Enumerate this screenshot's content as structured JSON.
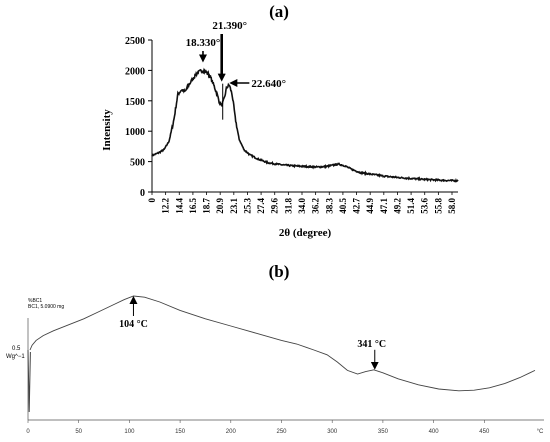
{
  "chart_data": [
    {
      "panel_label": "(a)",
      "type": "line",
      "xlabel": "2θ (degree)",
      "ylabel": "Intensity",
      "ylim": [
        0,
        2500
      ],
      "yticks": [
        "0",
        "500",
        "1000",
        "1500",
        "2000",
        "2500"
      ],
      "xticks": [
        "0",
        "12.2",
        "14.4",
        "16.5",
        "18.7",
        "20.9",
        "23.1",
        "25.3",
        "27.4",
        "29.6",
        "31.8",
        "34.0",
        "36.2",
        "38.3",
        "40.5",
        "42.7",
        "44.9",
        "47.1",
        "49.2",
        "51.4",
        "53.6",
        "55.8",
        "58.0"
      ],
      "series": [
        {
          "x": [
            10.0,
            11.0,
            12.0,
            12.8,
            13.6,
            14.2,
            14.8,
            15.4,
            16.0,
            16.6,
            17.2,
            17.8,
            18.3,
            18.9,
            19.5,
            20.0,
            20.6,
            21.0,
            21.39,
            21.8,
            22.2,
            22.64,
            23.1,
            23.6,
            24.2,
            25.0,
            26.0,
            27.4,
            29.0,
            31.0,
            33.0,
            35.0,
            37.0,
            38.5,
            39.5,
            40.5,
            41.5,
            42.7,
            44.0,
            46.0,
            48.0,
            50.0,
            52.0,
            54.0,
            56.0,
            58.0,
            60.0
          ],
          "y": [
            600,
            640,
            700,
            840,
            1200,
            1600,
            1680,
            1650,
            1760,
            1850,
            1940,
            1980,
            2000,
            1970,
            1900,
            1780,
            1620,
            1480,
            1420,
            1530,
            1720,
            1760,
            1600,
            1220,
            880,
            700,
            610,
            540,
            480,
            450,
            430,
            420,
            410,
            420,
            440,
            460,
            430,
            370,
            320,
            290,
            260,
            240,
            225,
            210,
            200,
            190,
            185
          ]
        }
      ],
      "annotations": [
        {
          "label": "18.330°",
          "x": 18.33,
          "arrow": "down"
        },
        {
          "label": "21.390°",
          "x": 21.39,
          "arrow": "down"
        },
        {
          "label": "22.640°",
          "x": 22.64,
          "arrow": "left"
        }
      ]
    },
    {
      "panel_label": "(b)",
      "type": "line",
      "header_lines": [
        "%BC1",
        "BC1, 5.0900 mg"
      ],
      "ylabel": "Wg^−1",
      "ytick": "0.5",
      "xlim": [
        0,
        500
      ],
      "xticks": [
        "0",
        "50",
        "100",
        "150",
        "200",
        "250",
        "300",
        "350",
        "400",
        "450",
        "°C"
      ],
      "series": [
        {
          "x": [
            2,
            4,
            8,
            15,
            25,
            40,
            55,
            70,
            85,
            95,
            104,
            115,
            130,
            150,
            175,
            200,
            225,
            250,
            265,
            275,
            282,
            295,
            305,
            315,
            325,
            333,
            341,
            350,
            365,
            385,
            405,
            425,
            440,
            455,
            470,
            485,
            495,
            500
          ],
          "y": [
            0.5,
            0.54,
            0.58,
            0.62,
            0.66,
            0.71,
            0.76,
            0.82,
            0.88,
            0.92,
            0.95,
            0.94,
            0.9,
            0.83,
            0.76,
            0.7,
            0.64,
            0.58,
            0.55,
            0.52,
            0.5,
            0.46,
            0.4,
            0.33,
            0.3,
            0.32,
            0.335,
            0.31,
            0.26,
            0.21,
            0.175,
            0.16,
            0.165,
            0.185,
            0.22,
            0.27,
            0.31,
            0.33
          ]
        }
      ],
      "annotations": [
        {
          "label": "104 °C",
          "x": 104,
          "arrow": "up"
        },
        {
          "label": "341 °C",
          "x": 341,
          "arrow": "down"
        }
      ]
    }
  ]
}
